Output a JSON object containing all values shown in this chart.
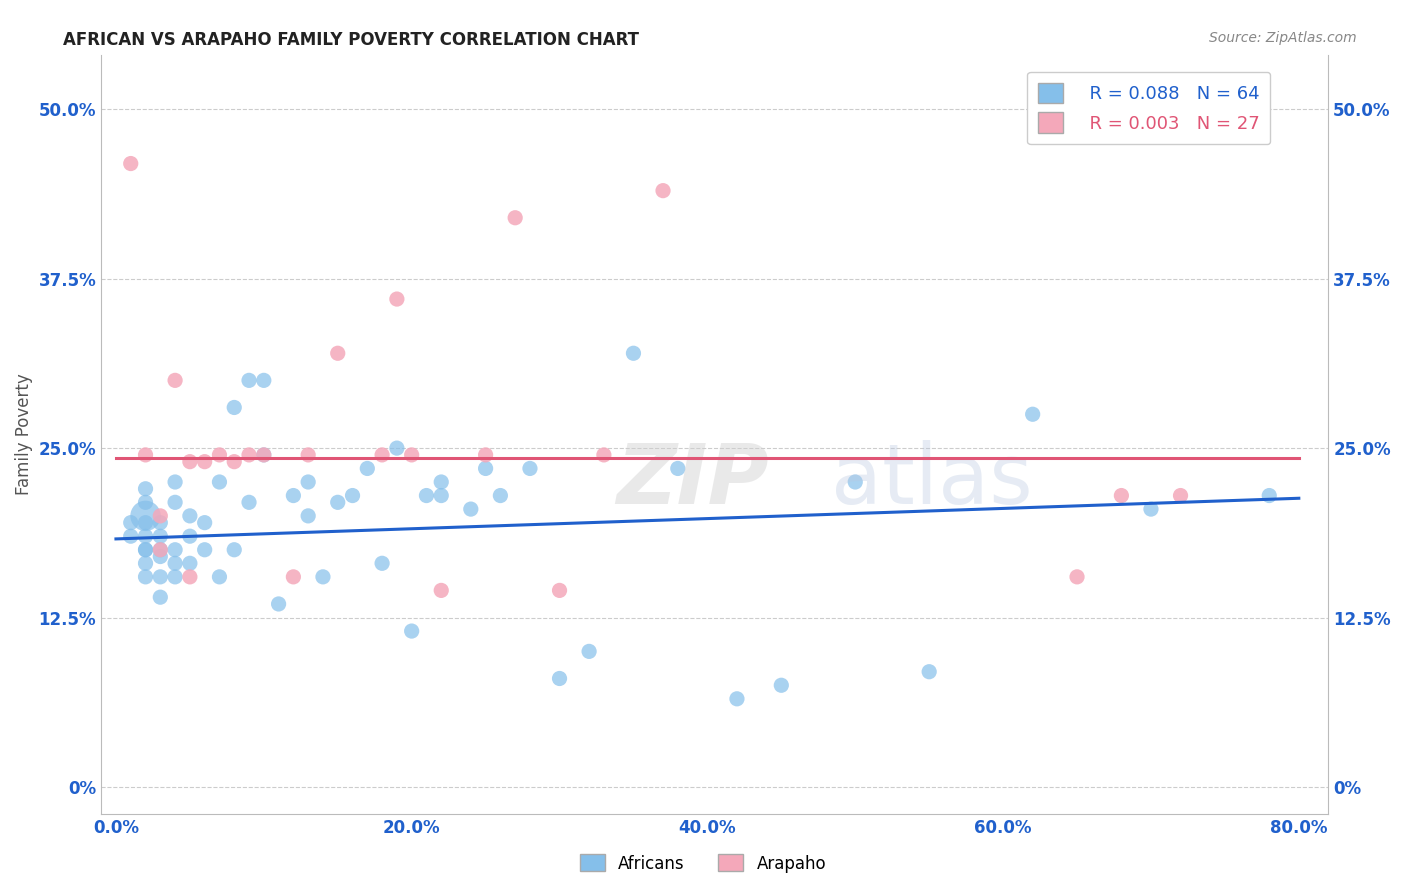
{
  "title": "AFRICAN VS ARAPAHO FAMILY POVERTY CORRELATION CHART",
  "source": "Source: ZipAtlas.com",
  "ylabel": "Family Poverty",
  "ytick_values": [
    0.0,
    0.125,
    0.25,
    0.375,
    0.5
  ],
  "ytick_labels": [
    "0%",
    "12.5%",
    "25.0%",
    "37.5%",
    "50.0%"
  ],
  "xtick_values": [
    0.0,
    0.2,
    0.4,
    0.6,
    0.8
  ],
  "xtick_labels": [
    "0.0%",
    "20.0%",
    "40.0%",
    "60.0%",
    "80.0%"
  ],
  "xlim": [
    -0.01,
    0.82
  ],
  "ylim": [
    -0.02,
    0.54
  ],
  "blue_R": 0.088,
  "blue_N": 64,
  "pink_R": 0.003,
  "pink_N": 27,
  "blue_color": "#85BFEA",
  "pink_color": "#F4A8BA",
  "blue_line_color": "#2060CC",
  "pink_line_color": "#E05575",
  "legend_label_blue": "Africans",
  "legend_label_pink": "Arapaho",
  "background_color": "#FFFFFF",
  "blue_scatter_x": [
    0.01,
    0.01,
    0.02,
    0.02,
    0.02,
    0.02,
    0.02,
    0.02,
    0.02,
    0.02,
    0.02,
    0.03,
    0.03,
    0.03,
    0.03,
    0.03,
    0.03,
    0.04,
    0.04,
    0.04,
    0.04,
    0.04,
    0.05,
    0.05,
    0.05,
    0.06,
    0.06,
    0.07,
    0.07,
    0.08,
    0.08,
    0.09,
    0.09,
    0.1,
    0.1,
    0.11,
    0.12,
    0.13,
    0.13,
    0.14,
    0.15,
    0.16,
    0.17,
    0.18,
    0.19,
    0.2,
    0.21,
    0.22,
    0.22,
    0.24,
    0.25,
    0.26,
    0.28,
    0.3,
    0.32,
    0.35,
    0.38,
    0.42,
    0.45,
    0.5,
    0.55,
    0.62,
    0.7,
    0.78
  ],
  "blue_scatter_y": [
    0.185,
    0.195,
    0.155,
    0.165,
    0.175,
    0.185,
    0.195,
    0.175,
    0.2,
    0.21,
    0.22,
    0.14,
    0.155,
    0.17,
    0.175,
    0.185,
    0.195,
    0.155,
    0.165,
    0.175,
    0.21,
    0.225,
    0.165,
    0.185,
    0.2,
    0.175,
    0.195,
    0.155,
    0.225,
    0.175,
    0.28,
    0.21,
    0.3,
    0.245,
    0.3,
    0.135,
    0.215,
    0.2,
    0.225,
    0.155,
    0.21,
    0.215,
    0.235,
    0.165,
    0.25,
    0.115,
    0.215,
    0.215,
    0.225,
    0.205,
    0.235,
    0.215,
    0.235,
    0.08,
    0.1,
    0.32,
    0.235,
    0.065,
    0.075,
    0.225,
    0.085,
    0.275,
    0.205,
    0.215
  ],
  "blue_scatter_sizes_raw": [
    30,
    30,
    30,
    30,
    30,
    30,
    30,
    30,
    120,
    30,
    30,
    30,
    30,
    30,
    30,
    30,
    30,
    30,
    30,
    30,
    30,
    30,
    30,
    30,
    30,
    30,
    30,
    30,
    30,
    30,
    30,
    30,
    30,
    30,
    30,
    30,
    30,
    30,
    30,
    30,
    30,
    30,
    30,
    30,
    30,
    30,
    30,
    30,
    30,
    30,
    30,
    30,
    30,
    30,
    30,
    30,
    30,
    30,
    30,
    30,
    30,
    30,
    30,
    30
  ],
  "pink_scatter_x": [
    0.01,
    0.02,
    0.03,
    0.03,
    0.04,
    0.05,
    0.05,
    0.06,
    0.07,
    0.08,
    0.09,
    0.1,
    0.12,
    0.13,
    0.15,
    0.18,
    0.19,
    0.2,
    0.22,
    0.25,
    0.27,
    0.3,
    0.33,
    0.37,
    0.65,
    0.68,
    0.72
  ],
  "pink_scatter_y": [
    0.46,
    0.245,
    0.2,
    0.175,
    0.3,
    0.24,
    0.155,
    0.24,
    0.245,
    0.24,
    0.245,
    0.245,
    0.155,
    0.245,
    0.32,
    0.245,
    0.36,
    0.245,
    0.145,
    0.245,
    0.42,
    0.145,
    0.245,
    0.44,
    0.155,
    0.215,
    0.215
  ],
  "pink_scatter_sizes_raw": [
    30,
    30,
    30,
    30,
    30,
    30,
    30,
    30,
    30,
    30,
    30,
    30,
    30,
    30,
    30,
    30,
    30,
    30,
    30,
    30,
    30,
    30,
    30,
    30,
    30,
    30,
    30
  ],
  "blue_trend_x0": 0.0,
  "blue_trend_y0": 0.183,
  "blue_trend_x1": 0.8,
  "blue_trend_y1": 0.213,
  "pink_trend_x0": 0.0,
  "pink_trend_y0": 0.243,
  "pink_trend_x1": 0.8,
  "pink_trend_y1": 0.243
}
